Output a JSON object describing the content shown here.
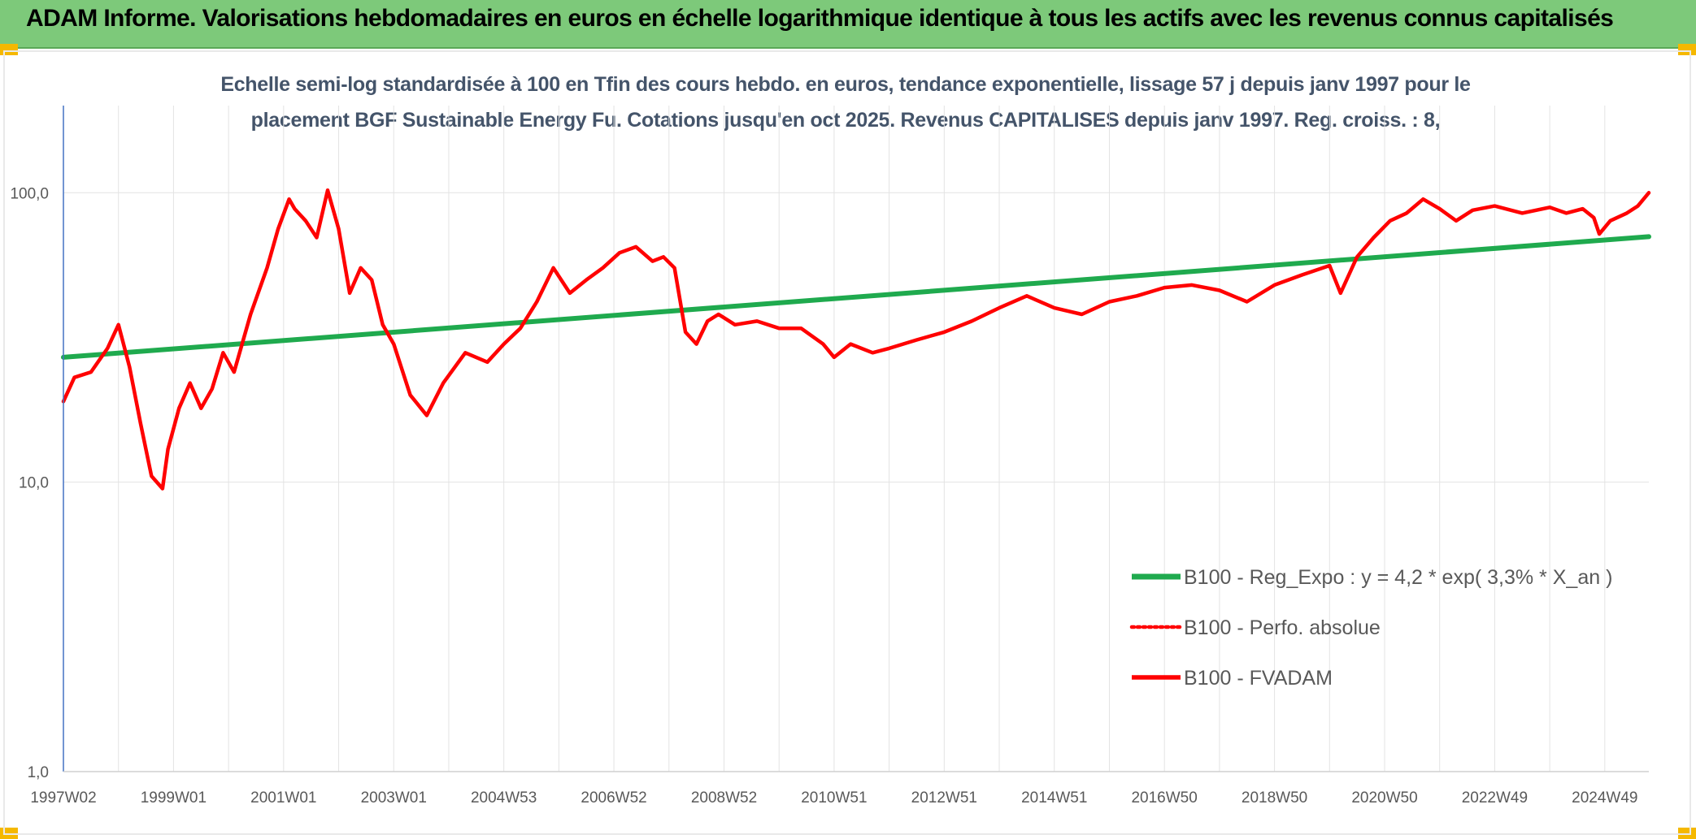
{
  "banner": {
    "title": "ADAM Informe. Valorisations hebdomadaires en euros en échelle logarithmique identique à tous les actifs avec les revenus connus capitalisés"
  },
  "colors": {
    "banner": "#7dc97a",
    "corner": "#f5b800",
    "subtitle": "#44546a",
    "trend": "#1faa4e",
    "perf": "#ff0000",
    "grid": "#e3e3e3",
    "axis": "#4472c4"
  },
  "chart_data": {
    "type": "line",
    "subtitle_line1": "Echelle semi-log standardisée à 100 en Tfin des cours hebdo. en euros, tendance exponentielle, lissage 57 j depuis janv 1997 pour le",
    "subtitle_line2": "placement BGF Sustainable Energy Fu. Cotations jusqu'en oct 2025. Revenus CAPITALISES depuis janv 1997. Reg. croiss. : 8,",
    "y_scale": "log",
    "ylim": [
      1,
      200
    ],
    "y_ticks": [
      "1,0",
      "10,0",
      "100,0"
    ],
    "y_tick_values": [
      1,
      10,
      100
    ],
    "x_ticks": [
      "1997W02",
      "1999W01",
      "2001W01",
      "2003W01",
      "2004W53",
      "2006W52",
      "2008W52",
      "2010W51",
      "2012W51",
      "2014W51",
      "2016W50",
      "2018W50",
      "2020W50",
      "2022W49",
      "2024W49"
    ],
    "x_tick_years": [
      1997.0,
      1999.0,
      2001.0,
      2003.0,
      2005.0,
      2007.0,
      2009.0,
      2011.0,
      2013.0,
      2015.0,
      2017.0,
      2019.0,
      2021.0,
      2023.0,
      2025.0
    ],
    "xlim": [
      1997.0,
      2025.8
    ],
    "grid": true,
    "legend_position": "bottom-right",
    "series": [
      {
        "name": "B100 - Reg_Expo : y = 4,2 * exp( 3,3% *  X_an )",
        "style": "solid-green",
        "x": [
          1997.0,
          2025.8
        ],
        "y": [
          27,
          70.5
        ]
      },
      {
        "name": "B100 - Perfo. absolue",
        "style": "dotted-red",
        "x": [],
        "y": []
      },
      {
        "name": "B100 - FVADAM",
        "style": "solid-red",
        "x": [
          1997.0,
          1997.2,
          1997.5,
          1997.8,
          1998.0,
          1998.2,
          1998.4,
          1998.6,
          1998.8,
          1998.9,
          1999.1,
          1999.3,
          1999.5,
          1999.7,
          1999.9,
          2000.1,
          2000.4,
          2000.7,
          2000.9,
          2001.1,
          2001.2,
          2001.4,
          2001.6,
          2001.8,
          2002.0,
          2002.2,
          2002.4,
          2002.6,
          2002.8,
          2003.0,
          2003.3,
          2003.6,
          2003.9,
          2004.3,
          2004.7,
          2005.0,
          2005.3,
          2005.6,
          2005.9,
          2006.2,
          2006.5,
          2006.8,
          2007.1,
          2007.4,
          2007.7,
          2007.9,
          2008.1,
          2008.3,
          2008.5,
          2008.7,
          2008.9,
          2009.2,
          2009.6,
          2010.0,
          2010.4,
          2010.8,
          2011.0,
          2011.3,
          2011.7,
          2012.0,
          2012.5,
          2013.0,
          2013.5,
          2014.0,
          2014.5,
          2015.0,
          2015.5,
          2016.0,
          2016.5,
          2017.0,
          2017.5,
          2018.0,
          2018.5,
          2019.0,
          2019.5,
          2020.0,
          2020.2,
          2020.5,
          2020.8,
          2021.1,
          2021.4,
          2021.7,
          2022.0,
          2022.3,
          2022.6,
          2023.0,
          2023.5,
          2024.0,
          2024.3,
          2024.6,
          2024.8,
          2024.9,
          2025.1,
          2025.4,
          2025.6,
          2025.8
        ],
        "y": [
          19,
          23,
          24,
          29,
          35,
          25,
          16,
          10.5,
          9.5,
          13,
          18,
          22,
          18,
          21,
          28,
          24,
          38,
          55,
          75,
          95,
          88,
          80,
          70,
          102,
          75,
          45,
          55,
          50,
          35,
          30,
          20,
          17,
          22,
          28,
          26,
          30,
          34,
          42,
          55,
          45,
          50,
          55,
          62,
          65,
          58,
          60,
          55,
          33,
          30,
          36,
          38,
          35,
          36,
          34,
          34,
          30,
          27,
          30,
          28,
          29,
          31,
          33,
          36,
          40,
          44,
          40,
          38,
          42,
          44,
          47,
          48,
          46,
          42,
          48,
          52,
          56,
          45,
          60,
          70,
          80,
          85,
          95,
          88,
          80,
          87,
          90,
          85,
          89,
          85,
          88,
          82,
          72,
          80,
          85,
          90,
          100
        ]
      }
    ]
  }
}
